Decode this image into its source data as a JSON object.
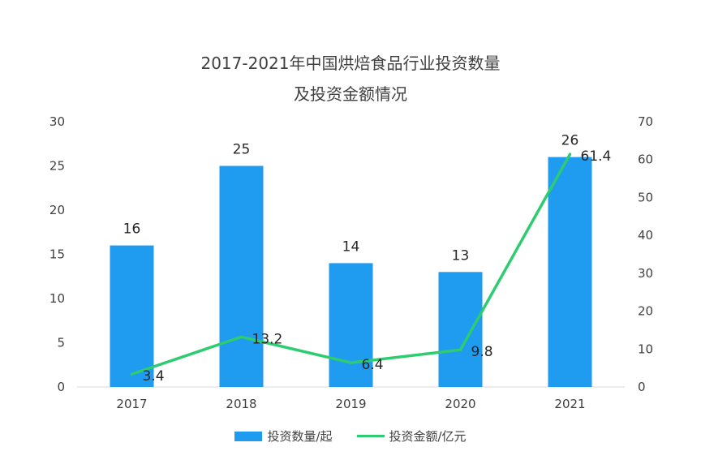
{
  "chart_data": {
    "type": "bar+line",
    "title_line1": "2017-2021年中国烘焙食品行业投资数量",
    "title_line2": "及投资金额情况",
    "categories": [
      "2017",
      "2018",
      "2019",
      "2020",
      "2021"
    ],
    "series": [
      {
        "name": "投资数量/起",
        "type": "bar",
        "axis": "left",
        "values": [
          16,
          25,
          14,
          13,
          26
        ]
      },
      {
        "name": "投资金额/亿元",
        "type": "line",
        "axis": "right",
        "values": [
          3.4,
          13.2,
          6.4,
          9.8,
          61.4
        ]
      }
    ],
    "y_left": {
      "min": 0,
      "max": 30,
      "ticks": [
        "0",
        "5",
        "10",
        "15",
        "20",
        "25",
        "30"
      ]
    },
    "y_right": {
      "min": 0,
      "max": 70,
      "ticks": [
        "0",
        "10",
        "20",
        "30",
        "40",
        "50",
        "60",
        "70"
      ]
    },
    "bar_labels": [
      "16",
      "25",
      "14",
      "13",
      "26"
    ],
    "line_labels": [
      "3.4",
      "13.2",
      "6.4",
      "9.8",
      "61.4"
    ],
    "grid": false,
    "legend_position": "bottom",
    "colors": {
      "bar": "#1f9bf0",
      "line": "#2ecc71"
    }
  }
}
